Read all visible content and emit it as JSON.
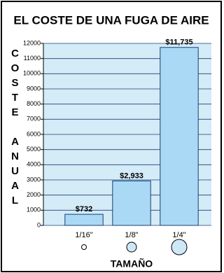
{
  "chart_data": {
    "type": "bar",
    "title": "EL COSTE DE UNA FUGA DE AIRE",
    "y_label": "COSTE ANUAL",
    "x_label": "TAMAÑO",
    "categories": [
      "1/16\"",
      "1/8\"",
      "1/4\""
    ],
    "values": [
      732,
      2933,
      11735
    ],
    "value_labels": [
      "$732",
      "$2,933",
      "$11,735"
    ],
    "color": "#a9d9f5",
    "ylim": [
      0,
      12000
    ],
    "yticks": [
      0,
      1000,
      2000,
      3000,
      4000,
      5000,
      6000,
      7000,
      8000,
      9000,
      10000,
      11000,
      12000
    ],
    "grid": true
  }
}
